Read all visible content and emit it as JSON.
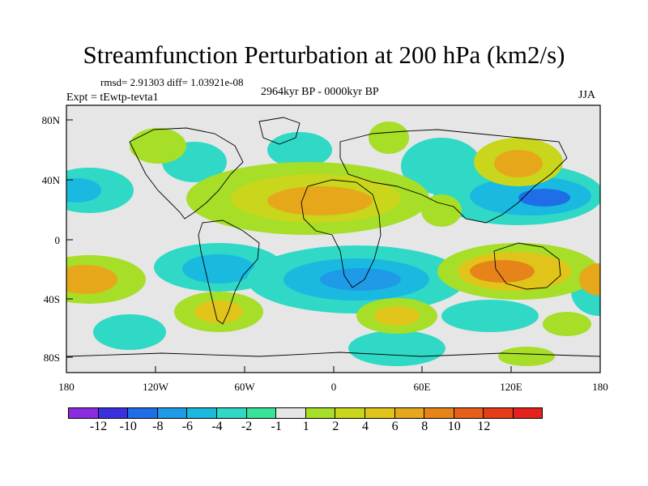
{
  "title": "Streamfunction Perturbation at 200 hPa (km2/s)",
  "stats": "rmsd= 2.91303 diff= 1.03921e-08",
  "period": "2964kyr BP - 0000kyr BP",
  "experiment": "Expt = tEwtp-tevta1",
  "season": "JJA",
  "axes": {
    "lat_ticks": [
      "80N",
      "40N",
      "0",
      "40S",
      "80S"
    ],
    "lon_ticks": [
      "180",
      "120W",
      "60W",
      "0",
      "60E",
      "120E",
      "180"
    ]
  },
  "colorbar": {
    "colors": [
      "#8a2be2",
      "#3c2fe0",
      "#1e6ee8",
      "#1f9ae6",
      "#19b9e0",
      "#2fd9c6",
      "#3ae39a",
      "#e6e6e6",
      "#a6de28",
      "#c9d61c",
      "#e0c41a",
      "#e6a81a",
      "#e6841a",
      "#e6601a",
      "#e63c1a",
      "#e6201a"
    ],
    "labels": [
      "-12",
      "-10",
      "-8",
      "-6",
      "-4",
      "-2",
      "-1",
      "1",
      "2",
      "4",
      "6",
      "8",
      "10",
      "12"
    ]
  }
}
